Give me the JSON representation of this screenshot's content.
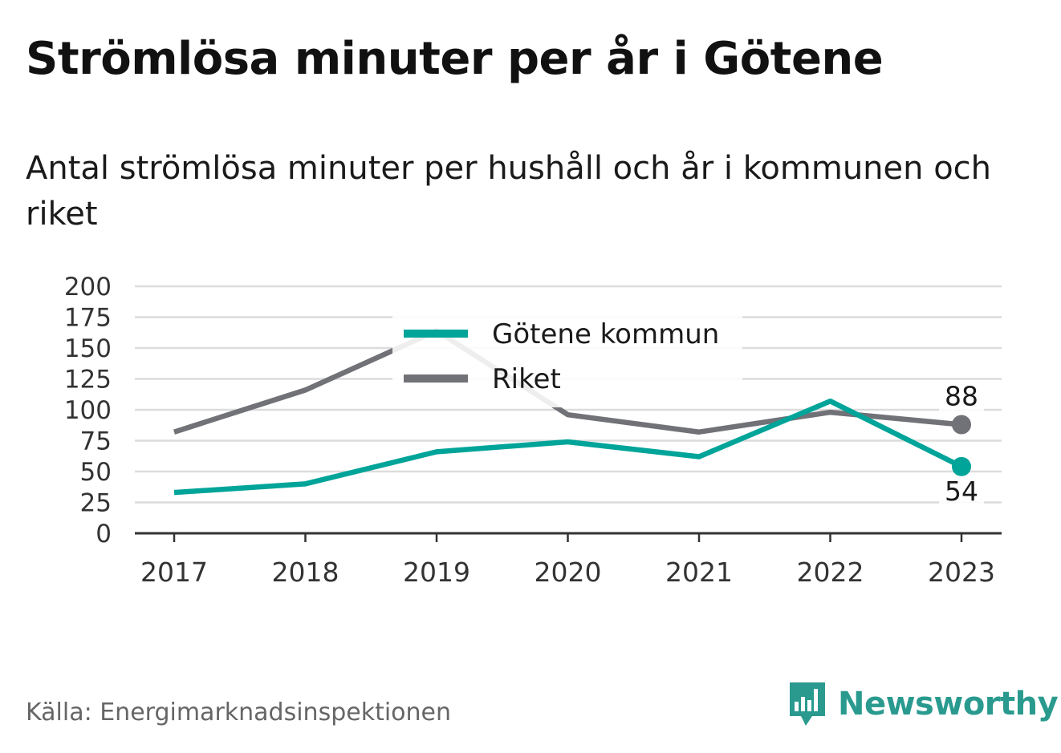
{
  "header": {
    "title": "Strömlösa minuter per år i Götene",
    "subtitle": "Antal strömlösa minuter per hushåll och år i kommunen och riket"
  },
  "footer": {
    "source": "Källa: Energimarknadsinspektionen",
    "brand": "Newsworthy",
    "logo_icon": "newsworthy-bar-chart-logo-icon"
  },
  "colors": {
    "gotene": "#00a499",
    "riket": "#717178",
    "grid": "#dcdcdc",
    "axis": "#333333",
    "brand": "#2a9a8f"
  },
  "chart_data": {
    "type": "line",
    "x": [
      "2017",
      "2018",
      "2019",
      "2020",
      "2021",
      "2022",
      "2023"
    ],
    "ylim": [
      0,
      200
    ],
    "yticks": [
      "0",
      "25",
      "50",
      "75",
      "100",
      "125",
      "150",
      "175",
      "200"
    ],
    "grid": true,
    "legend_position": "top-center",
    "series": [
      {
        "name": "Götene kommun",
        "color": "#00a499",
        "values": [
          33,
          40,
          66,
          74,
          62,
          107,
          54
        ],
        "end_label": "54"
      },
      {
        "name": "Riket",
        "color": "#717178",
        "values": [
          82,
          116,
          164,
          96,
          82,
          98,
          88
        ],
        "end_label": "88"
      }
    ]
  }
}
